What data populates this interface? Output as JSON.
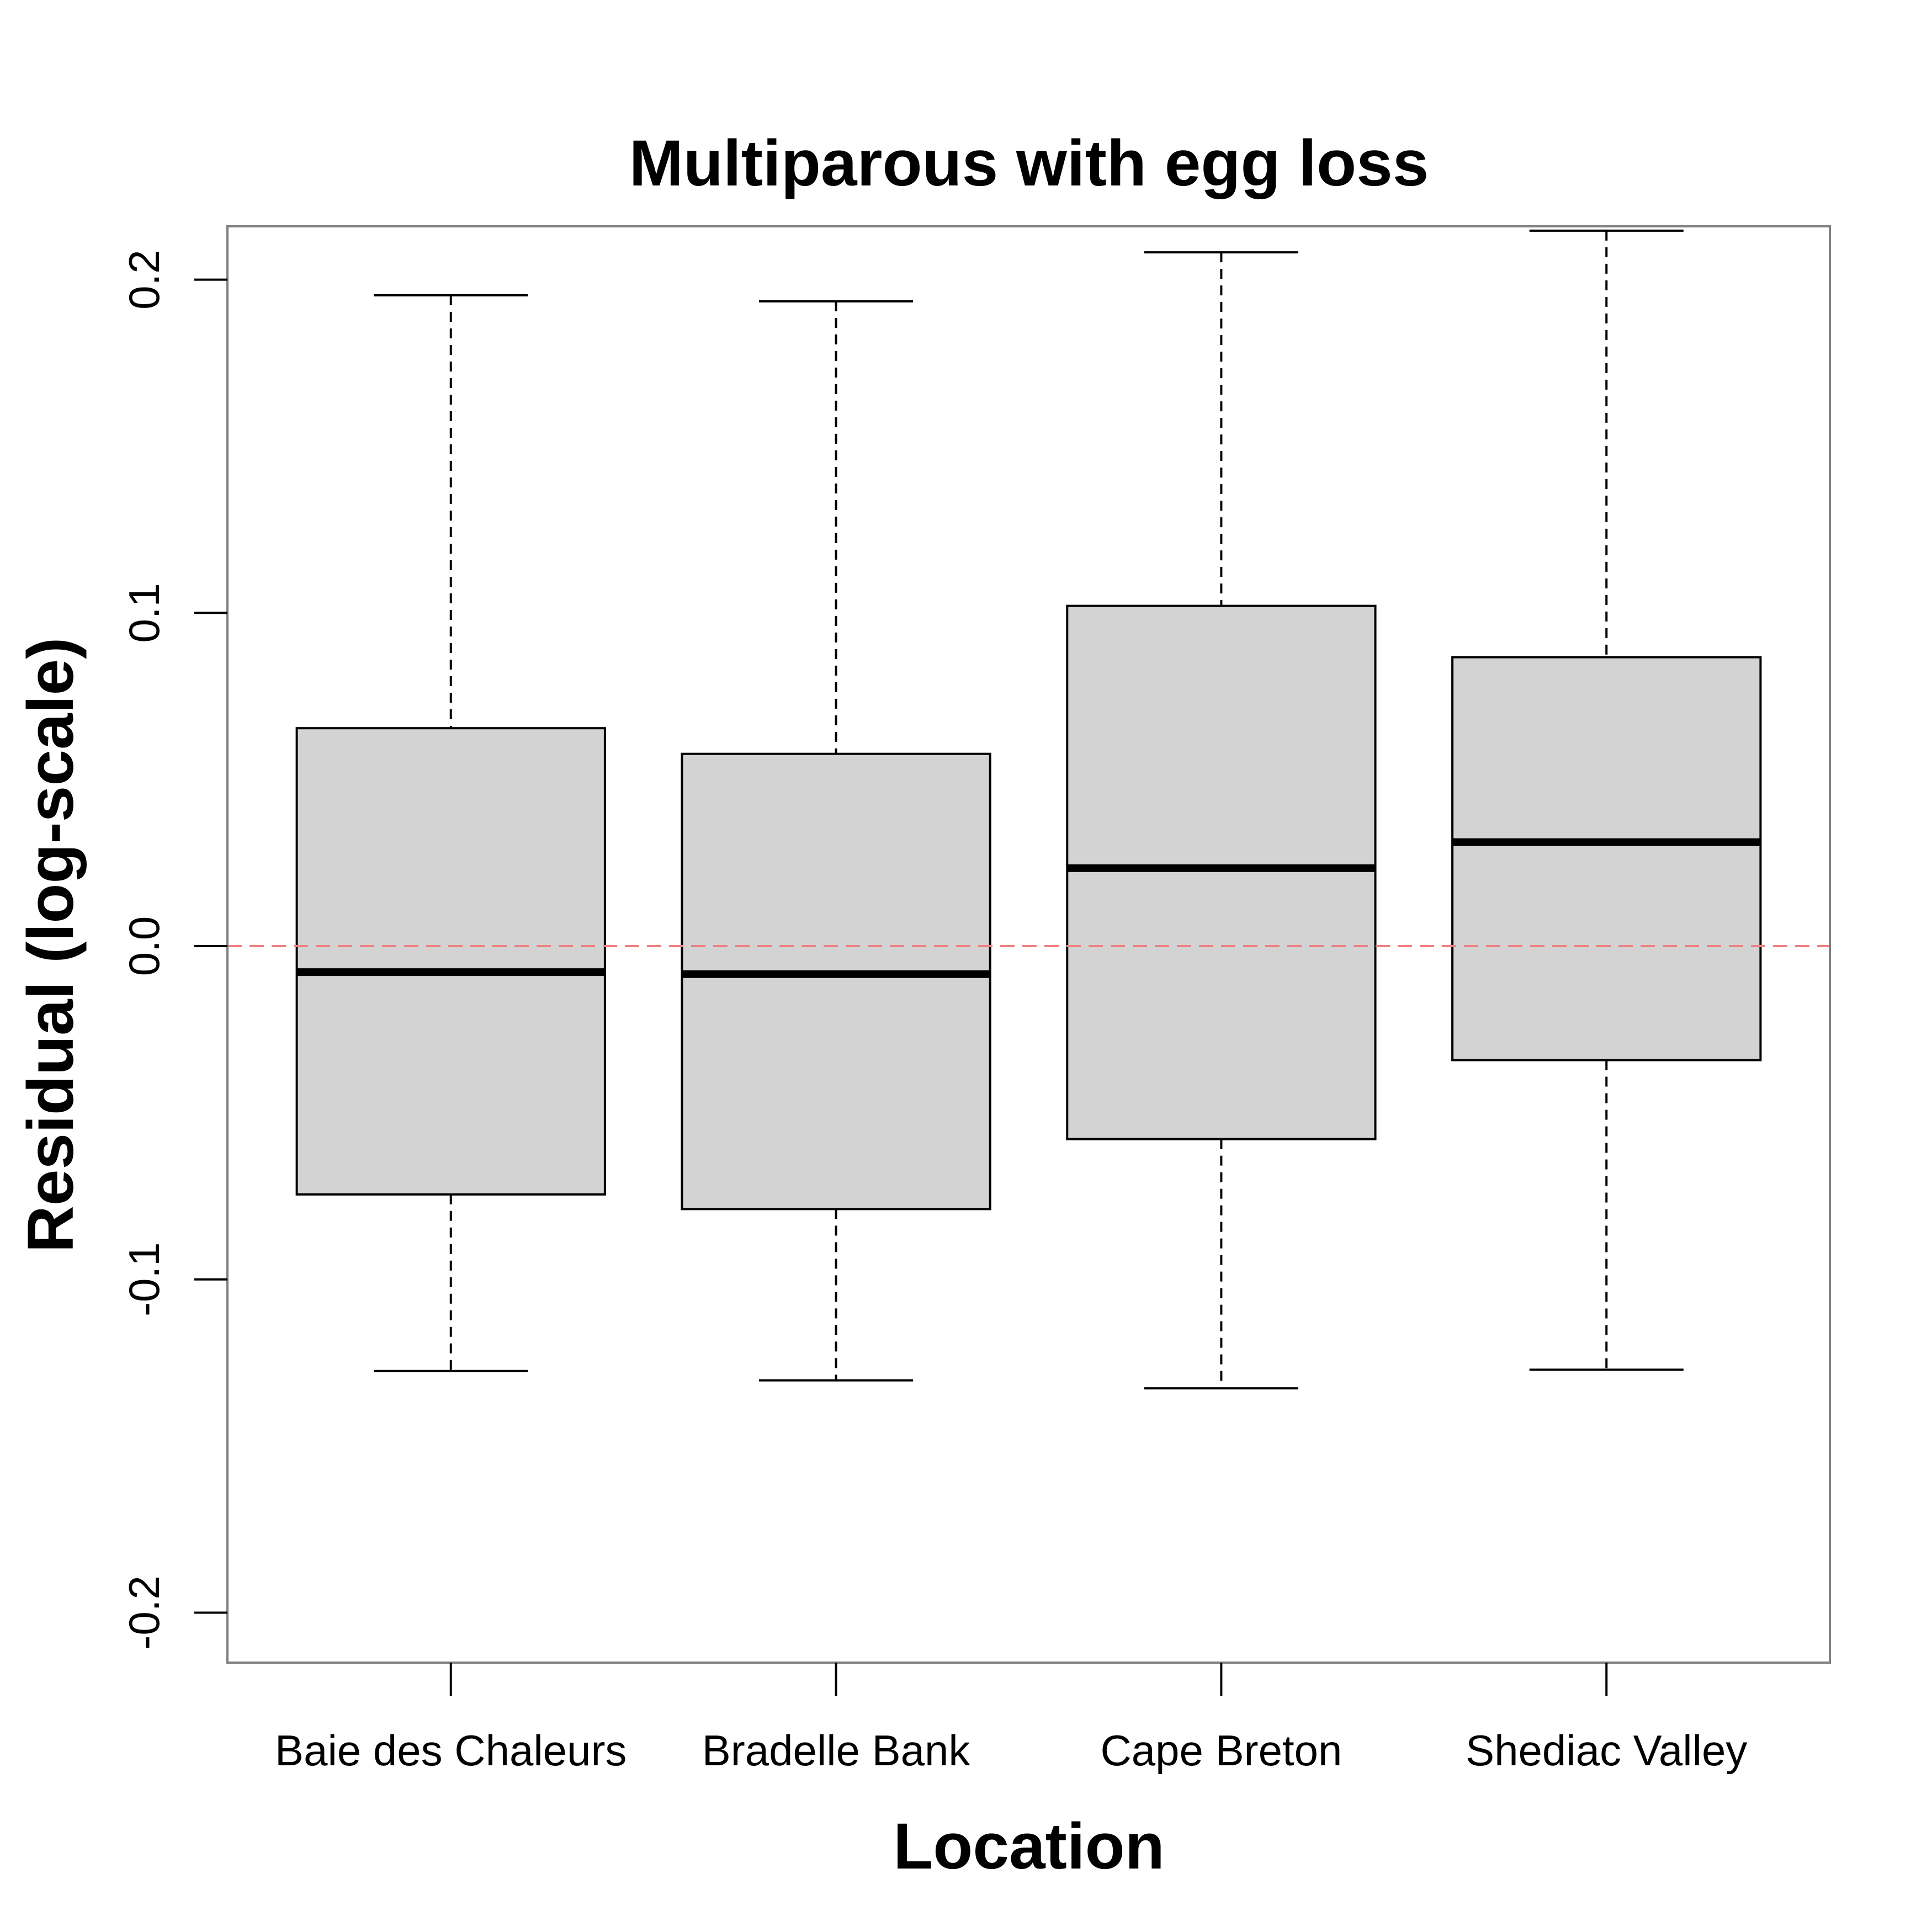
{
  "chart_data": {
    "type": "boxplot",
    "title": "Multiparous with egg loss",
    "xlabel": "Location",
    "ylabel": "Residual (log-scale)",
    "ylim": [
      -0.215,
      0.216
    ],
    "yticks": [
      -0.2,
      -0.1,
      0.0,
      0.1,
      0.2
    ],
    "ytick_labels": [
      "-0.2",
      "-0.1",
      "0.0",
      "0.1",
      "0.2"
    ],
    "categories": [
      "Baie des Chaleurs",
      "Bradelle Bank",
      "Cape Breton",
      "Shediac Valley"
    ],
    "boxes": [
      {
        "whisker_low": -0.1275,
        "q1": -0.0745,
        "median": -0.0078,
        "q3": 0.0654,
        "whisker_high": 0.1953
      },
      {
        "whisker_low": -0.1303,
        "q1": -0.0789,
        "median": -0.0084,
        "q3": 0.0577,
        "whisker_high": 0.1935
      },
      {
        "whisker_low": -0.1327,
        "q1": -0.0579,
        "median": 0.0234,
        "q3": 0.1021,
        "whisker_high": 0.2082
      },
      {
        "whisker_low": -0.1271,
        "q1": -0.0342,
        "median": 0.0312,
        "q3": 0.0867,
        "whisker_high": 0.2147
      }
    ],
    "reference_line": {
      "y": 0.0,
      "color": "#f08080",
      "style": "dashed"
    },
    "colors": {
      "box_fill": "#d3d3d3",
      "box_stroke": "#000000",
      "frame": "#808080"
    },
    "grid": false
  }
}
